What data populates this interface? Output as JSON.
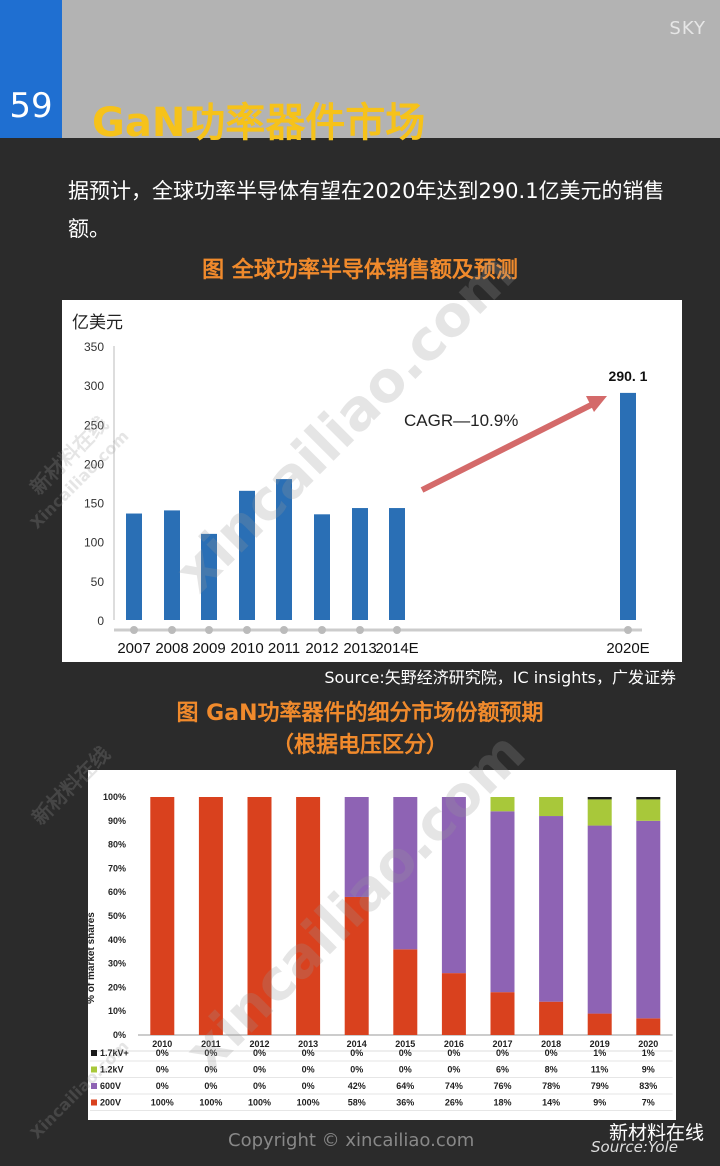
{
  "page": {
    "number": "59",
    "corner_label": "SKY",
    "title": "GaN功率器件市场",
    "intro": "据预计，全球功率半导体有望在2020年达到290.1亿美元的销售额。",
    "source": "Source:矢野经济研究院，IC insights，广发证券",
    "copyright": "Copyright © xincailiao.com",
    "wechat": "新材料在线",
    "source_watermark": "Source:Yole",
    "watermark": "xincailiao.com",
    "watermark_cn": "新材料在线",
    "watermark_en": "Xincailiao.com"
  },
  "chart_data": [
    {
      "type": "bar",
      "title": "图 全球功率半导体销售额及预测",
      "ylabel": "亿美元",
      "categories": [
        "2007",
        "2008",
        "2009",
        "2010",
        "2011",
        "2012",
        "2013",
        "2014E",
        "2020E"
      ],
      "values": [
        136,
        140,
        110,
        165,
        180,
        135,
        143,
        143,
        290.1
      ],
      "ylim": [
        0,
        350
      ],
      "yticks": [
        "0",
        "50",
        "100",
        "150",
        "200",
        "250",
        "300",
        "350"
      ],
      "data_labels": [
        {
          "category": "2020E",
          "text": "290. 1"
        }
      ],
      "annotation": "CAGR—10.9%",
      "color": "#2a6fb5"
    },
    {
      "type": "bar",
      "stacked": true,
      "title": "图 GaN功率器件的细分市场份额预期",
      "subtitle": "（根据电压区分）",
      "ylabel": "% of market shares",
      "categories": [
        "2010",
        "2011",
        "2012",
        "2013",
        "2014",
        "2015",
        "2016",
        "2017",
        "2018",
        "2019",
        "2020"
      ],
      "yticks": [
        "0%",
        "10%",
        "20%",
        "30%",
        "40%",
        "50%",
        "60%",
        "70%",
        "80%",
        "90%",
        "100%"
      ],
      "series": [
        {
          "name": "200V",
          "color": "#d9411e",
          "values": [
            100,
            100,
            100,
            100,
            58,
            36,
            26,
            18,
            14,
            9,
            7
          ],
          "labels": [
            "100%",
            "100%",
            "100%",
            "100%",
            "58%",
            "36%",
            "26%",
            "18%",
            "14%",
            "9%",
            "7%"
          ]
        },
        {
          "name": "600V",
          "color": "#8e63b4",
          "values": [
            0,
            0,
            0,
            0,
            42,
            64,
            74,
            76,
            78,
            79,
            83
          ],
          "labels": [
            "0%",
            "0%",
            "0%",
            "0%",
            "42%",
            "64%",
            "74%",
            "76%",
            "78%",
            "79%",
            "83%"
          ]
        },
        {
          "name": "1.2kV",
          "color": "#a8c83a",
          "values": [
            0,
            0,
            0,
            0,
            0,
            0,
            0,
            6,
            8,
            11,
            9
          ],
          "labels": [
            "0%",
            "0%",
            "0%",
            "0%",
            "0%",
            "0%",
            "0%",
            "6%",
            "8%",
            "11%",
            "9%"
          ]
        },
        {
          "name": "1.7kV+",
          "color": "#1a1a1a",
          "values": [
            0,
            0,
            0,
            0,
            0,
            0,
            0,
            0,
            0,
            1,
            1
          ],
          "labels": [
            "0%",
            "0%",
            "0%",
            "0%",
            "0%",
            "0%",
            "0%",
            "0%",
            "0%",
            "1%",
            "1%"
          ]
        }
      ]
    }
  ]
}
